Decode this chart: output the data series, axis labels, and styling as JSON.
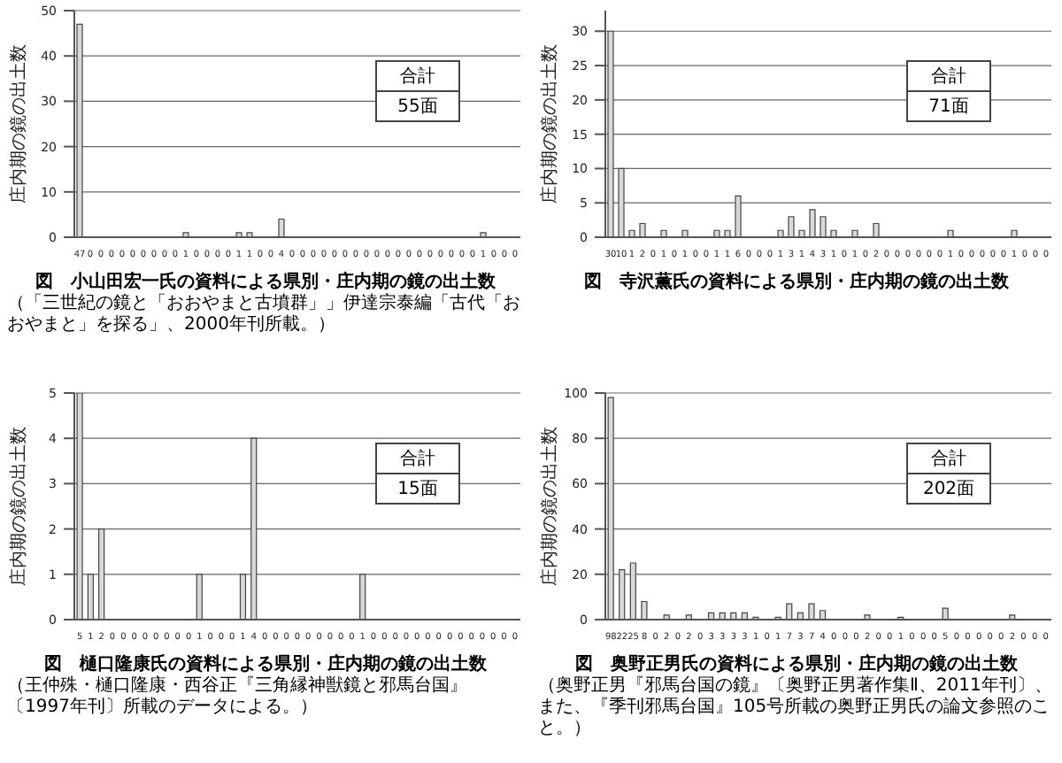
{
  "chart_data": [
    {
      "type": "bar",
      "title": "図　小山田宏一氏の資料による県別・庄内期の鏡の出土数",
      "ylabel": "庄内期の鏡の出土数",
      "color": "#d9d9d9",
      "grid": "y",
      "data_labels": true,
      "ylim": [
        0,
        50
      ],
      "yticks": [
        0,
        10,
        20,
        30,
        40,
        50
      ],
      "categories": [
        null,
        null,
        null,
        null,
        null,
        null,
        null,
        null,
        null,
        null,
        null,
        null,
        null,
        null,
        null,
        null,
        null,
        null,
        null,
        null,
        null,
        null,
        null,
        null,
        null,
        null,
        null,
        null,
        null,
        null,
        null,
        null,
        null,
        null,
        null,
        null,
        null,
        null,
        null,
        null,
        null,
        null
      ],
      "values": [
        47,
        0,
        0,
        0,
        0,
        0,
        0,
        0,
        0,
        0,
        1,
        0,
        0,
        0,
        0,
        1,
        1,
        0,
        0,
        4,
        0,
        0,
        0,
        0,
        0,
        0,
        0,
        0,
        0,
        0,
        0,
        0,
        0,
        0,
        0,
        0,
        0,
        0,
        1,
        0,
        0,
        0
      ],
      "annotations": [
        "合計",
        "55面",
        "（「三世紀の鏡と「おおやまと古墳群」」伊達宗泰編「古代「おおやまと」を探る」、2000年刊所載。）"
      ]
    },
    {
      "type": "bar",
      "title": "図　寺沢薫氏の資料による県別・庄内期の鏡の出土数",
      "ylabel": "庄内期の鏡の出土数",
      "color": "#d9d9d9",
      "grid": "y",
      "data_labels": true,
      "ylim": [
        0,
        33
      ],
      "yticks": [
        0,
        5,
        10,
        15,
        20,
        25,
        30
      ],
      "categories": [
        null,
        null,
        null,
        null,
        null,
        null,
        null,
        null,
        null,
        null,
        null,
        null,
        null,
        null,
        null,
        null,
        null,
        null,
        null,
        null,
        null,
        null,
        null,
        null,
        null,
        null,
        null,
        null,
        null,
        null,
        null,
        null,
        null,
        null,
        null,
        null,
        null,
        null,
        null,
        null,
        null,
        null
      ],
      "values": [
        30,
        10,
        1,
        2,
        0,
        1,
        0,
        1,
        0,
        0,
        1,
        1,
        6,
        0,
        0,
        0,
        1,
        3,
        1,
        4,
        3,
        1,
        0,
        1,
        0,
        2,
        0,
        0,
        0,
        0,
        0,
        0,
        1,
        0,
        0,
        0,
        0,
        0,
        1,
        0,
        0,
        0
      ],
      "annotations": [
        "合計",
        "71面"
      ]
    },
    {
      "type": "bar",
      "title": "図　樋口隆康氏の資料による県別・庄内期の鏡の出土数",
      "ylabel": "庄内期の鏡の出土数",
      "color": "#d9d9d9",
      "grid": "y",
      "data_labels": true,
      "ylim": [
        0,
        5
      ],
      "yticks": [
        0,
        1,
        2,
        3,
        4,
        5
      ],
      "categories": [
        null,
        null,
        null,
        null,
        null,
        null,
        null,
        null,
        null,
        null,
        null,
        null,
        null,
        null,
        null,
        null,
        null,
        null,
        null,
        null,
        null,
        null,
        null,
        null,
        null,
        null,
        null,
        null,
        null,
        null,
        null,
        null,
        null,
        null,
        null,
        null,
        null,
        null,
        null,
        null,
        null
      ],
      "values": [
        5,
        1,
        2,
        0,
        0,
        0,
        0,
        0,
        0,
        0,
        0,
        1,
        0,
        0,
        0,
        1,
        4,
        0,
        0,
        0,
        0,
        0,
        0,
        0,
        0,
        0,
        1,
        0,
        0,
        0,
        0,
        0,
        0,
        0,
        0,
        0,
        0,
        0,
        0,
        0,
        0
      ],
      "annotations": [
        "合計",
        "15面",
        "（王仲殊・樋口隆康・西谷正『三角縁神獣鏡と邪馬台国』〔1997年刊〕所載のデータによる。）"
      ]
    },
    {
      "type": "bar",
      "title": "図　奥野正男氏の資料による県別・庄内期の鏡の出土数",
      "ylabel": "庄内期の鏡の出土数",
      "color": "#d9d9d9",
      "grid": "y",
      "data_labels": true,
      "ylim": [
        0,
        100
      ],
      "yticks": [
        0,
        20,
        40,
        60,
        80,
        100
      ],
      "categories": [
        null,
        null,
        null,
        null,
        null,
        null,
        null,
        null,
        null,
        null,
        null,
        null,
        null,
        null,
        null,
        null,
        null,
        null,
        null,
        null,
        null,
        null,
        null,
        null,
        null,
        null,
        null,
        null,
        null,
        null,
        null,
        null,
        null,
        null,
        null,
        null,
        null,
        null,
        null,
        null
      ],
      "values": [
        98,
        22,
        25,
        8,
        0,
        2,
        0,
        2,
        0,
        3,
        3,
        3,
        3,
        1,
        0,
        1,
        7,
        3,
        7,
        4,
        0,
        0,
        0,
        2,
        0,
        0,
        1,
        0,
        0,
        0,
        5,
        0,
        0,
        0,
        0,
        0,
        2,
        0,
        0,
        0
      ],
      "annotations": [
        "合計",
        "202面",
        "（奥野正男『邪馬台国の鏡』〔奥野正男著作集Ⅱ、2011年刊〕、また、『季刊邪馬台国』105号所載の奥野正男氏の論文参照のこと。）"
      ]
    }
  ]
}
